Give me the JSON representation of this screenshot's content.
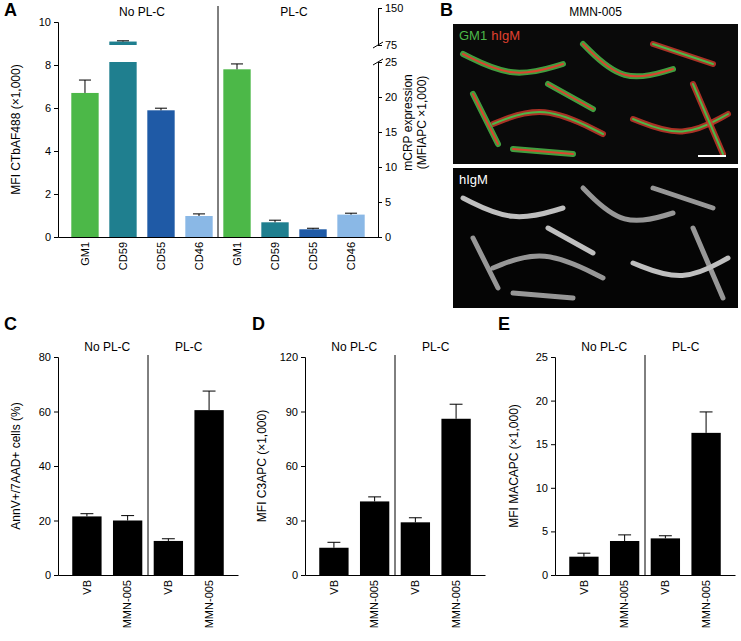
{
  "chart_data": [
    {
      "type": "bar",
      "label": "A",
      "categories": [
        "GM1",
        "CD59",
        "CD55",
        "CD46",
        "GM1",
        "CD59",
        "CD55",
        "CD46"
      ],
      "colors": [
        "#4cb848",
        "#1f7f8f",
        "#1f5aa6",
        "#8ab8e6",
        "#4cb848",
        "#1f7f8f",
        "#1f5aa6",
        "#8ab8e6"
      ],
      "annotations": [
        "No PL-C",
        "PL-C"
      ],
      "ylabel": "MFI CTbAF488 (×1,000)",
      "y2label": [
        "mCRP expression",
        "(MFIAPC ×1,000)"
      ],
      "ylim": [
        0,
        10
      ],
      "yticks": [
        0,
        2,
        4,
        6,
        8,
        10
      ],
      "y2lim": [
        0,
        150
      ],
      "y2ticks": [
        0,
        5,
        10,
        15,
        20,
        25,
        75,
        150
      ],
      "y2_break": [
        25,
        75
      ],
      "series": [
        {
          "axis": "y",
          "values": [
            6.7,
            null,
            null,
            null,
            7.8,
            null,
            null,
            null
          ],
          "errors": [
            0.6,
            null,
            null,
            null,
            0.25,
            null,
            null,
            null
          ]
        },
        {
          "axis": "y2",
          "values": [
            null,
            82,
            18.1,
            3.0,
            null,
            2.1,
            1.1,
            3.2
          ],
          "errors": [
            null,
            1.5,
            0.3,
            0.3,
            null,
            0.3,
            0.15,
            0.2
          ]
        }
      ]
    },
    {
      "type": "image",
      "label": "B",
      "title": "MMN-005",
      "annotations": [
        "GM1",
        "hIgM",
        "hIgM"
      ]
    },
    {
      "type": "bar",
      "label": "C",
      "categories": [
        "VB",
        "MMN-005",
        "VB",
        "MMN-005"
      ],
      "color": "#000000",
      "annotations": [
        "No PL-C",
        "PL-C"
      ],
      "ylabel": "AnnV+/7AAD+ cells (%)",
      "ylim": [
        0,
        80
      ],
      "yticks": [
        0,
        20,
        40,
        60,
        80
      ],
      "series": [
        {
          "values": [
            21.5,
            20,
            12.5,
            60.5
          ],
          "errors": [
            1,
            1.8,
            0.8,
            7
          ]
        }
      ]
    },
    {
      "type": "bar",
      "label": "D",
      "categories": [
        "VB",
        "MMN-005",
        "VB",
        "MMN-005"
      ],
      "color": "#000000",
      "annotations": [
        "No PL-C",
        "PL-C"
      ],
      "ylabel": "MFI C3APC (×1,000)",
      "ylim": [
        0,
        120
      ],
      "yticks": [
        0,
        30,
        60,
        90,
        120
      ],
      "series": [
        {
          "values": [
            15,
            40.5,
            29,
            86
          ],
          "errors": [
            3,
            2.5,
            2.5,
            8
          ]
        }
      ]
    },
    {
      "type": "bar",
      "label": "E",
      "categories": [
        "VB",
        "MMN-005",
        "VB",
        "MMN-005"
      ],
      "color": "#000000",
      "annotations": [
        "No PL-C",
        "PL-C"
      ],
      "ylabel": "MFI MACAPC (×1,000)",
      "ylim": [
        0,
        25
      ],
      "yticks": [
        0,
        5,
        10,
        15,
        20,
        25
      ],
      "series": [
        {
          "values": [
            2.1,
            3.9,
            4.2,
            16.3
          ],
          "errors": [
            0.4,
            0.7,
            0.3,
            2.4
          ]
        }
      ]
    }
  ]
}
